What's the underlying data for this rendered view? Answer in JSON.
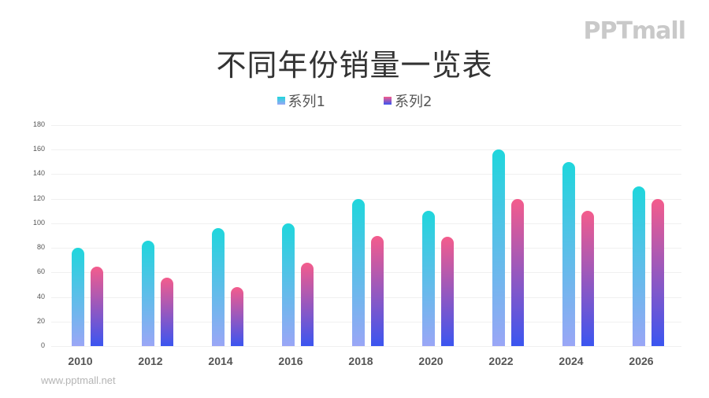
{
  "title": "不同年份销量一览表",
  "logo": "PPTmall",
  "footer": "www.pptmall.net",
  "legend": [
    {
      "label": "系列1",
      "color": "#3ecbe0"
    },
    {
      "label": "系列2",
      "color": "#8a3fb0"
    }
  ],
  "chart_data": {
    "type": "bar",
    "title": "不同年份销量一览表",
    "categories": [
      "2010",
      "2012",
      "2014",
      "2016",
      "2018",
      "2020",
      "2022",
      "2024",
      "2026"
    ],
    "series": [
      {
        "name": "系列1",
        "values": [
          80,
          86,
          96,
          100,
          120,
          110,
          160,
          150,
          130
        ]
      },
      {
        "name": "系列2",
        "values": [
          65,
          56,
          48,
          68,
          90,
          89,
          120,
          110,
          120
        ]
      }
    ],
    "yticks": [
      0,
      20,
      40,
      60,
      80,
      100,
      120,
      140,
      160,
      180
    ],
    "ylim": [
      0,
      180
    ],
    "xlabel": "",
    "ylabel": "",
    "grid": true,
    "legend_position": "top"
  }
}
